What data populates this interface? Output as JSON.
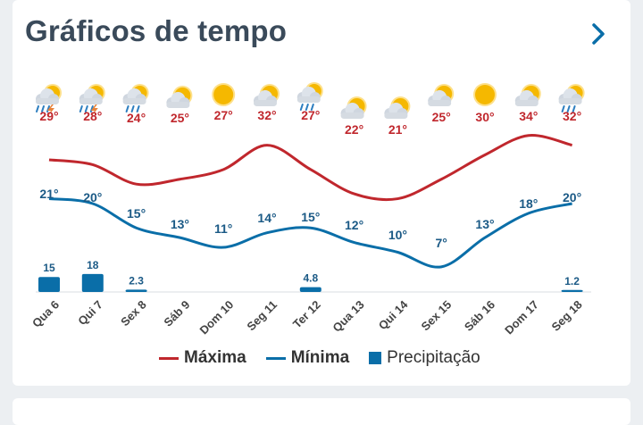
{
  "header": {
    "title": "Gráficos de tempo",
    "next_icon": "chevron-right-icon"
  },
  "colors": {
    "max": "#c0272d",
    "min": "#0a6ea8",
    "precip": "#0a6ea8",
    "text_max": "#c0272d",
    "text_min": "#1b5a86"
  },
  "days": [
    {
      "label": "Qua 6",
      "icon": "storm-sun-icon",
      "max": "29°",
      "min": "21°"
    },
    {
      "label": "Qui 7",
      "icon": "storm-sun-icon",
      "max": "28°",
      "min": "20°"
    },
    {
      "label": "Sex 8",
      "icon": "rain-sun-icon",
      "max": "24°",
      "min": "15°"
    },
    {
      "label": "Sáb 9",
      "icon": "partly-cloudy-icon",
      "max": "25°",
      "min": "13°"
    },
    {
      "label": "Dom 10",
      "icon": "sun-icon",
      "max": "27°",
      "min": "11°"
    },
    {
      "label": "Seg 11",
      "icon": "partly-cloudy-icon",
      "max": "32°",
      "min": "14°"
    },
    {
      "label": "Ter 12",
      "icon": "rain-sun-icon",
      "max": "27°",
      "min": "15°"
    },
    {
      "label": "Qua 13",
      "icon": "partly-cloudy-icon",
      "max": "22°",
      "min": "12°"
    },
    {
      "label": "Qui 14",
      "icon": "partly-cloudy-icon",
      "max": "21°",
      "min": "10°"
    },
    {
      "label": "Sex 15",
      "icon": "partly-cloudy-icon",
      "max": "25°",
      "min": "7°"
    },
    {
      "label": "Sáb 16",
      "icon": "sun-icon",
      "max": "30°",
      "min": "13°"
    },
    {
      "label": "Dom 17",
      "icon": "partly-cloudy-icon",
      "max": "34°",
      "min": "18°"
    },
    {
      "label": "Seg 18",
      "icon": "rain-sun-icon",
      "max": "32°",
      "min": "20°"
    }
  ],
  "legend": {
    "max": "Máxima",
    "min": "Mínima",
    "precip": "Precipitação"
  },
  "chart_data": {
    "type": "line",
    "categories": [
      "Qua 6",
      "Qui 7",
      "Sex 8",
      "Sáb 9",
      "Dom 10",
      "Seg 11",
      "Ter 12",
      "Qua 13",
      "Qui 14",
      "Sex 15",
      "Sáb 16",
      "Dom 17",
      "Seg 18"
    ],
    "series": [
      {
        "name": "Máxima",
        "values": [
          29,
          28,
          24,
          25,
          27,
          32,
          27,
          22,
          21,
          25,
          30,
          34,
          32
        ]
      },
      {
        "name": "Mínima",
        "values": [
          21,
          20,
          15,
          13,
          11,
          14,
          15,
          12,
          10,
          7,
          13,
          18,
          20
        ]
      }
    ],
    "bars": {
      "name": "Precipitação",
      "values": [
        15,
        18,
        2.3,
        0,
        0,
        0,
        4.8,
        0,
        0,
        0,
        0,
        0,
        1.2
      ],
      "labels": [
        "15",
        "18",
        "2.3",
        "",
        "",
        "",
        "4.8",
        "",
        "",
        "",
        "",
        "",
        "1.2"
      ]
    }
  }
}
